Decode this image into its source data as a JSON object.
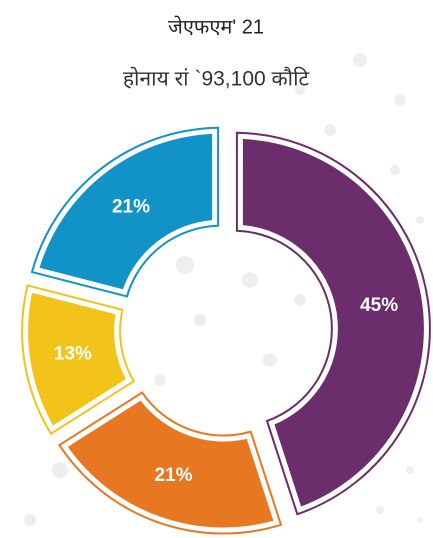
{
  "chart_data": {
    "type": "donut",
    "title": "जेएफएम' 21",
    "subtitle": "होनाय रां `93,100 कौटि",
    "categories": [
      null,
      null,
      null,
      null
    ],
    "values": [
      45,
      21,
      13,
      21
    ],
    "value_labels": [
      "45%",
      "21%",
      "13%",
      "21%"
    ],
    "colors": [
      "#6b2d6b",
      "#e87722",
      "#f2c318",
      "#1193c8"
    ]
  }
}
